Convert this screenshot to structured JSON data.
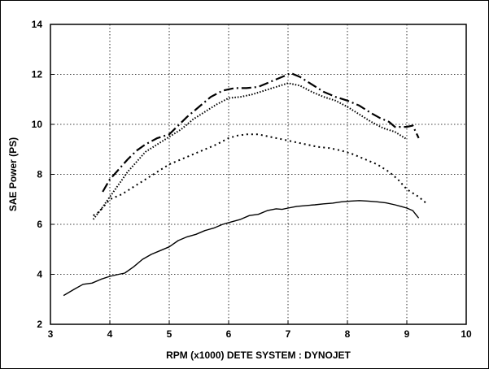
{
  "chart_data": {
    "type": "line",
    "title": "",
    "xlabel": "RPM (x1000) DETE SYSTEM : DYNOJET",
    "ylabel": "SAE Power (PS)",
    "xlim": [
      3,
      10
    ],
    "ylim": [
      2,
      14
    ],
    "xticks": [
      3,
      4,
      5,
      6,
      7,
      8,
      9,
      10
    ],
    "yticks": [
      2,
      4,
      6,
      8,
      10,
      12,
      14
    ],
    "grid": true,
    "legend": "none",
    "series": [
      {
        "style": "solid",
        "points": [
          [
            3.22,
            3.15
          ],
          [
            3.4,
            3.4
          ],
          [
            3.55,
            3.6
          ],
          [
            3.7,
            3.65
          ],
          [
            3.85,
            3.8
          ],
          [
            4.0,
            3.92
          ],
          [
            4.15,
            4.0
          ],
          [
            4.25,
            4.05
          ],
          [
            4.4,
            4.3
          ],
          [
            4.55,
            4.6
          ],
          [
            4.7,
            4.8
          ],
          [
            4.85,
            4.95
          ],
          [
            5.0,
            5.1
          ],
          [
            5.15,
            5.35
          ],
          [
            5.3,
            5.5
          ],
          [
            5.45,
            5.6
          ],
          [
            5.6,
            5.75
          ],
          [
            5.75,
            5.85
          ],
          [
            5.9,
            6.0
          ],
          [
            6.05,
            6.1
          ],
          [
            6.2,
            6.2
          ],
          [
            6.35,
            6.35
          ],
          [
            6.5,
            6.4
          ],
          [
            6.65,
            6.55
          ],
          [
            6.8,
            6.62
          ],
          [
            6.9,
            6.6
          ],
          [
            7.0,
            6.65
          ],
          [
            7.15,
            6.72
          ],
          [
            7.3,
            6.75
          ],
          [
            7.45,
            6.78
          ],
          [
            7.6,
            6.82
          ],
          [
            7.75,
            6.85
          ],
          [
            7.9,
            6.9
          ],
          [
            8.05,
            6.93
          ],
          [
            8.2,
            6.95
          ],
          [
            8.35,
            6.93
          ],
          [
            8.5,
            6.9
          ],
          [
            8.65,
            6.86
          ],
          [
            8.8,
            6.78
          ],
          [
            8.9,
            6.72
          ],
          [
            9.0,
            6.65
          ],
          [
            9.1,
            6.55
          ],
          [
            9.2,
            6.25
          ]
        ]
      },
      {
        "style": "dotted",
        "points": [
          [
            3.72,
            6.35
          ],
          [
            3.82,
            6.5
          ],
          [
            4.0,
            7.0
          ],
          [
            4.2,
            7.2
          ],
          [
            4.4,
            7.5
          ],
          [
            4.6,
            7.8
          ],
          [
            4.8,
            8.1
          ],
          [
            5.0,
            8.4
          ],
          [
            5.2,
            8.6
          ],
          [
            5.4,
            8.8
          ],
          [
            5.6,
            9.0
          ],
          [
            5.8,
            9.2
          ],
          [
            6.0,
            9.45
          ],
          [
            6.15,
            9.55
          ],
          [
            6.3,
            9.6
          ],
          [
            6.5,
            9.6
          ],
          [
            6.7,
            9.5
          ],
          [
            6.9,
            9.4
          ],
          [
            7.1,
            9.3
          ],
          [
            7.3,
            9.2
          ],
          [
            7.5,
            9.1
          ],
          [
            7.7,
            9.05
          ],
          [
            7.9,
            8.95
          ],
          [
            8.1,
            8.8
          ],
          [
            8.3,
            8.6
          ],
          [
            8.5,
            8.4
          ],
          [
            8.7,
            8.1
          ],
          [
            8.85,
            7.8
          ],
          [
            9.0,
            7.4
          ],
          [
            9.2,
            7.1
          ],
          [
            9.35,
            6.8
          ]
        ]
      },
      {
        "style": "densely-dotted",
        "points": [
          [
            3.72,
            6.2
          ],
          [
            3.85,
            6.6
          ],
          [
            4.0,
            7.1
          ],
          [
            4.15,
            7.6
          ],
          [
            4.3,
            8.1
          ],
          [
            4.45,
            8.5
          ],
          [
            4.6,
            8.9
          ],
          [
            4.8,
            9.2
          ],
          [
            5.0,
            9.5
          ],
          [
            5.2,
            9.8
          ],
          [
            5.4,
            10.2
          ],
          [
            5.6,
            10.5
          ],
          [
            5.8,
            10.8
          ],
          [
            6.0,
            11.05
          ],
          [
            6.2,
            11.1
          ],
          [
            6.4,
            11.2
          ],
          [
            6.6,
            11.35
          ],
          [
            6.8,
            11.5
          ],
          [
            7.0,
            11.65
          ],
          [
            7.2,
            11.55
          ],
          [
            7.4,
            11.3
          ],
          [
            7.6,
            11.1
          ],
          [
            7.8,
            10.95
          ],
          [
            8.0,
            10.7
          ],
          [
            8.2,
            10.4
          ],
          [
            8.4,
            10.1
          ],
          [
            8.6,
            9.85
          ],
          [
            8.8,
            9.7
          ],
          [
            9.0,
            9.4
          ]
        ]
      },
      {
        "style": "dash-dot",
        "points": [
          [
            3.88,
            7.3
          ],
          [
            4.0,
            7.8
          ],
          [
            4.15,
            8.2
          ],
          [
            4.3,
            8.6
          ],
          [
            4.45,
            8.95
          ],
          [
            4.6,
            9.2
          ],
          [
            4.8,
            9.45
          ],
          [
            5.0,
            9.6
          ],
          [
            5.15,
            9.95
          ],
          [
            5.3,
            10.3
          ],
          [
            5.5,
            10.7
          ],
          [
            5.7,
            11.1
          ],
          [
            5.9,
            11.35
          ],
          [
            6.1,
            11.45
          ],
          [
            6.3,
            11.45
          ],
          [
            6.5,
            11.5
          ],
          [
            6.7,
            11.7
          ],
          [
            6.9,
            11.9
          ],
          [
            7.05,
            12.05
          ],
          [
            7.2,
            11.9
          ],
          [
            7.4,
            11.6
          ],
          [
            7.6,
            11.3
          ],
          [
            7.8,
            11.1
          ],
          [
            8.0,
            10.95
          ],
          [
            8.2,
            10.75
          ],
          [
            8.4,
            10.45
          ],
          [
            8.55,
            10.25
          ],
          [
            8.7,
            10.1
          ],
          [
            8.8,
            9.9
          ],
          [
            9.0,
            9.9
          ],
          [
            9.1,
            9.95
          ],
          [
            9.2,
            9.45
          ]
        ]
      }
    ]
  }
}
